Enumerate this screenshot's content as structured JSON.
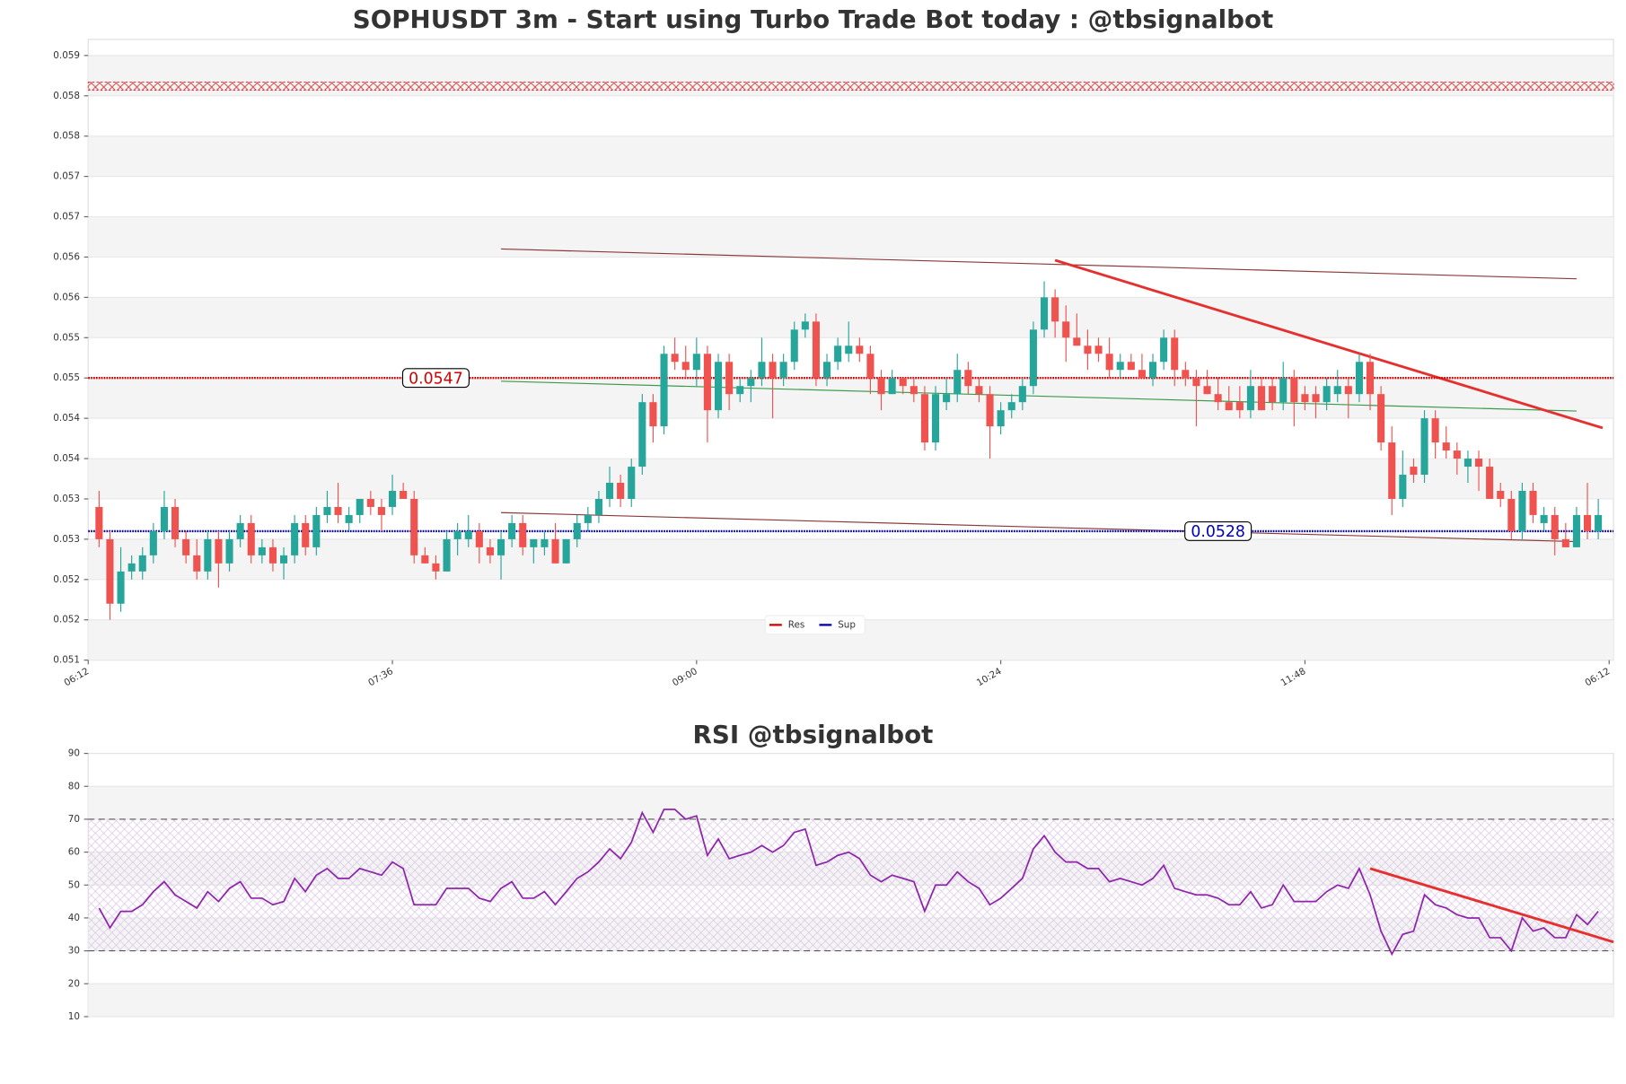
{
  "chart_data": [
    {
      "type": "candlestick",
      "title": "SOPHUSDT 3m - Start using Turbo Trade Bot today : @tbsignalbot",
      "up_color": "#26a69a",
      "down_color": "#ef5350",
      "open": [
        0.0531,
        0.0527,
        0.0519,
        0.0523,
        0.0523,
        0.0525,
        0.0528,
        0.0531,
        0.0527,
        0.0525,
        0.0523,
        0.0527,
        0.0524,
        0.0527,
        0.0529,
        0.0525,
        0.0526,
        0.0524,
        0.0525,
        0.0529,
        0.0526,
        0.053,
        0.0531,
        0.0529,
        0.053,
        0.0532,
        0.0531,
        0.0531,
        0.0533,
        0.0532,
        0.0525,
        0.0524,
        0.0523,
        0.0527,
        0.0527,
        0.0528,
        0.0526,
        0.0525,
        0.0527,
        0.0529,
        0.0526,
        0.0526,
        0.0527,
        0.0524,
        0.0527,
        0.0529,
        0.053,
        0.0532,
        0.0534,
        0.0532,
        0.0536,
        0.0544,
        0.0541,
        0.055,
        0.0549,
        0.0548,
        0.055,
        0.0543,
        0.0549,
        0.0545,
        0.0546,
        0.0547,
        0.0549,
        0.0547,
        0.0549,
        0.0553,
        0.0554,
        0.0547,
        0.0549,
        0.055,
        0.0551,
        0.055,
        0.0547,
        0.0545,
        0.0547,
        0.0546,
        0.0545,
        0.0539,
        0.0544,
        0.0545,
        0.0548,
        0.0546,
        0.0545,
        0.0541,
        0.0543,
        0.0544,
        0.0546,
        0.0553,
        0.0557,
        0.0554,
        0.0552,
        0.0551,
        0.0551,
        0.055,
        0.0548,
        0.0549,
        0.0548,
        0.0547,
        0.0549,
        0.0552,
        0.0548,
        0.0547,
        0.0546,
        0.0545,
        0.0544,
        0.0544,
        0.0543,
        0.0546,
        0.0546,
        0.0544,
        0.0547,
        0.0545,
        0.0545,
        0.0544,
        0.0545,
        0.0546,
        0.0545,
        0.0549,
        0.0545,
        0.0539,
        0.0532,
        0.0536,
        0.0535,
        0.0542,
        0.0539,
        0.0538,
        0.0536,
        0.0537,
        0.0536,
        0.0533,
        0.0532,
        0.0528,
        0.0533,
        0.0529,
        0.053,
        0.0527,
        0.0526,
        0.053,
        0.0528
      ],
      "high": [
        0.0533,
        0.0528,
        0.0526,
        0.0525,
        0.0526,
        0.0529,
        0.0533,
        0.0532,
        0.0528,
        0.0527,
        0.0528,
        0.0528,
        0.0528,
        0.053,
        0.053,
        0.0527,
        0.0527,
        0.0526,
        0.053,
        0.053,
        0.0531,
        0.0533,
        0.0534,
        0.0531,
        0.0532,
        0.0533,
        0.0532,
        0.0535,
        0.0534,
        0.0533,
        0.0526,
        0.0525,
        0.0528,
        0.0529,
        0.053,
        0.0529,
        0.0527,
        0.0528,
        0.053,
        0.053,
        0.0527,
        0.0528,
        0.0529,
        0.0527,
        0.053,
        0.0531,
        0.0533,
        0.0536,
        0.0535,
        0.0537,
        0.0545,
        0.0545,
        0.0551,
        0.0552,
        0.0551,
        0.0552,
        0.0551,
        0.055,
        0.055,
        0.0547,
        0.0548,
        0.0552,
        0.055,
        0.055,
        0.0554,
        0.0555,
        0.0555,
        0.055,
        0.0552,
        0.0554,
        0.0552,
        0.0551,
        0.0548,
        0.0548,
        0.0547,
        0.0547,
        0.0546,
        0.0546,
        0.0547,
        0.055,
        0.0549,
        0.0547,
        0.0546,
        0.0544,
        0.0545,
        0.0547,
        0.0554,
        0.0559,
        0.0558,
        0.0556,
        0.0555,
        0.0553,
        0.0552,
        0.0552,
        0.055,
        0.055,
        0.055,
        0.055,
        0.0553,
        0.0553,
        0.0549,
        0.0548,
        0.0548,
        0.0547,
        0.0546,
        0.0546,
        0.0548,
        0.0547,
        0.0547,
        0.0549,
        0.0548,
        0.0546,
        0.0546,
        0.0547,
        0.0548,
        0.0547,
        0.055,
        0.055,
        0.0546,
        0.0541,
        0.0538,
        0.0537,
        0.0543,
        0.0543,
        0.0541,
        0.0539,
        0.0538,
        0.0538,
        0.0537,
        0.0534,
        0.0533,
        0.0534,
        0.0534,
        0.0531,
        0.0531,
        0.0529,
        0.0531,
        0.0534,
        0.0532
      ],
      "low": [
        0.0526,
        0.0517,
        0.0518,
        0.0522,
        0.0522,
        0.0524,
        0.0527,
        0.0526,
        0.0524,
        0.0522,
        0.0522,
        0.0521,
        0.0523,
        0.0526,
        0.0524,
        0.0524,
        0.0523,
        0.0522,
        0.0524,
        0.0525,
        0.0525,
        0.0529,
        0.0529,
        0.0528,
        0.0529,
        0.053,
        0.0528,
        0.053,
        0.0532,
        0.0524,
        0.0524,
        0.0522,
        0.0523,
        0.0525,
        0.0526,
        0.0524,
        0.0524,
        0.0522,
        0.0526,
        0.0525,
        0.0524,
        0.0525,
        0.0524,
        0.0524,
        0.0526,
        0.0528,
        0.0529,
        0.0531,
        0.0531,
        0.0531,
        0.0535,
        0.0539,
        0.054,
        0.0548,
        0.0547,
        0.0546,
        0.0539,
        0.0542,
        0.0543,
        0.0544,
        0.0544,
        0.0546,
        0.0542,
        0.0546,
        0.0548,
        0.0552,
        0.0546,
        0.0546,
        0.0548,
        0.0549,
        0.0549,
        0.0545,
        0.0543,
        0.0545,
        0.0545,
        0.0544,
        0.0538,
        0.0538,
        0.0543,
        0.0544,
        0.0545,
        0.0544,
        0.0537,
        0.054,
        0.0542,
        0.0543,
        0.0545,
        0.0552,
        0.0552,
        0.0549,
        0.0551,
        0.0548,
        0.0549,
        0.0547,
        0.0547,
        0.0548,
        0.0547,
        0.0546,
        0.0548,
        0.0546,
        0.0546,
        0.0541,
        0.0545,
        0.0543,
        0.0543,
        0.0542,
        0.0542,
        0.0543,
        0.0543,
        0.0543,
        0.0541,
        0.0543,
        0.0542,
        0.0543,
        0.0544,
        0.0542,
        0.0544,
        0.0543,
        0.0538,
        0.053,
        0.0531,
        0.0534,
        0.0534,
        0.0537,
        0.0537,
        0.0535,
        0.0534,
        0.0533,
        0.0532,
        0.0531,
        0.0527,
        0.0527,
        0.0529,
        0.0528,
        0.0525,
        0.0526,
        0.0526,
        0.0527,
        0.0527
      ],
      "close": [
        0.0527,
        0.0519,
        0.0523,
        0.0524,
        0.0525,
        0.0528,
        0.0531,
        0.0527,
        0.0525,
        0.0523,
        0.0527,
        0.0524,
        0.0527,
        0.0529,
        0.0525,
        0.0526,
        0.0524,
        0.0525,
        0.0529,
        0.0526,
        0.053,
        0.0531,
        0.053,
        0.053,
        0.0532,
        0.0531,
        0.053,
        0.0533,
        0.0532,
        0.0525,
        0.0524,
        0.0523,
        0.0527,
        0.0528,
        0.0528,
        0.0526,
        0.0525,
        0.0527,
        0.0529,
        0.0526,
        0.0527,
        0.0527,
        0.0524,
        0.0527,
        0.0529,
        0.053,
        0.0532,
        0.0534,
        0.0532,
        0.0536,
        0.0544,
        0.0541,
        0.055,
        0.0549,
        0.0548,
        0.055,
        0.0543,
        0.0549,
        0.0545,
        0.0546,
        0.0547,
        0.0549,
        0.0547,
        0.0549,
        0.0553,
        0.0554,
        0.0547,
        0.0549,
        0.0551,
        0.0551,
        0.055,
        0.0547,
        0.0545,
        0.0547,
        0.0546,
        0.0545,
        0.0539,
        0.0545,
        0.0545,
        0.0548,
        0.0546,
        0.0545,
        0.0541,
        0.0543,
        0.0544,
        0.0546,
        0.0553,
        0.0557,
        0.0554,
        0.0552,
        0.0551,
        0.055,
        0.055,
        0.0548,
        0.0549,
        0.0548,
        0.0547,
        0.0549,
        0.0552,
        0.0548,
        0.0547,
        0.0546,
        0.0545,
        0.0544,
        0.0543,
        0.0543,
        0.0546,
        0.0543,
        0.0544,
        0.0547,
        0.0544,
        0.0544,
        0.0544,
        0.0546,
        0.0546,
        0.0545,
        0.0549,
        0.0545,
        0.0539,
        0.0532,
        0.0535,
        0.0535,
        0.0542,
        0.0539,
        0.0538,
        0.0537,
        0.0537,
        0.0536,
        0.0532,
        0.0532,
        0.0528,
        0.0533,
        0.053,
        0.053,
        0.0527,
        0.0526,
        0.053,
        0.0528,
        0.053
      ],
      "xlim": [
        -1,
        139.4
      ],
      "xticks": [
        {
          "value": -1,
          "label": "06:12"
        },
        {
          "value": 27,
          "label": "07:36"
        },
        {
          "value": 55,
          "label": "09:00"
        },
        {
          "value": 83,
          "label": "10:24"
        },
        {
          "value": 111,
          "label": "11:48"
        },
        {
          "value": 139,
          "label": "06:12"
        }
      ],
      "ylim": [
        0.0512,
        0.0589
      ],
      "yticks": [
        {
          "value": 0.0512,
          "label": "0.051"
        },
        {
          "value": 0.0517,
          "label": "0.052"
        },
        {
          "value": 0.0522,
          "label": "0.052"
        },
        {
          "value": 0.0527,
          "label": "0.053"
        },
        {
          "value": 0.0532,
          "label": "0.053"
        },
        {
          "value": 0.0537,
          "label": "0.054"
        },
        {
          "value": 0.0542,
          "label": "0.054"
        },
        {
          "value": 0.0547,
          "label": "0.055"
        },
        {
          "value": 0.0552,
          "label": "0.055"
        },
        {
          "value": 0.0557,
          "label": "0.056"
        },
        {
          "value": 0.0562,
          "label": "0.056"
        },
        {
          "value": 0.0567,
          "label": "0.057"
        },
        {
          "value": 0.0572,
          "label": "0.057"
        },
        {
          "value": 0.0577,
          "label": "0.058"
        },
        {
          "value": 0.0582,
          "label": "0.058"
        },
        {
          "value": 0.0587,
          "label": "0.059"
        }
      ],
      "grid": true,
      "zone": [
        0.05827,
        0.05837
      ],
      "levels": [
        {
          "name": "Res",
          "value": 0.0547,
          "value_label": "0.0547",
          "color": "#d40000"
        },
        {
          "name": "Sup",
          "value": 0.0528,
          "value_label": "0.0528",
          "color": "#0000b4"
        }
      ],
      "legend": "lower center",
      "trend_lines": [
        {
          "color": "#8b3a3a",
          "points": [
            [
              37,
              0.0563
            ],
            [
              136,
              0.05593
            ]
          ]
        },
        {
          "color": "#3a9a4a",
          "points": [
            [
              37,
              0.05466
            ],
            [
              136,
              0.05429
            ]
          ]
        },
        {
          "color": "#8b3a3a",
          "points": [
            [
              37,
              0.05303
            ],
            [
              136,
              0.05267
            ]
          ]
        },
        {
          "color": "#e53030",
          "points": [
            [
              88,
              0.05616
            ],
            [
              138.4,
              0.05408
            ]
          ]
        }
      ]
    },
    {
      "type": "line",
      "title": "RSI @tbsignalbot",
      "color": "#8e24aa",
      "values": [
        43,
        37,
        42,
        42,
        44,
        48,
        51,
        47,
        45,
        43,
        48,
        45,
        49,
        51,
        46,
        46,
        44,
        45,
        52,
        48,
        53,
        55,
        52,
        52,
        55,
        54,
        53,
        57,
        55,
        44,
        44,
        44,
        49,
        49,
        49,
        46,
        45,
        49,
        51,
        46,
        46,
        48,
        44,
        48,
        52,
        54,
        57,
        61,
        58,
        63,
        72,
        66,
        73,
        73,
        70,
        71,
        59,
        64,
        58,
        59,
        60,
        62,
        60,
        62,
        66,
        67,
        56,
        57,
        59,
        60,
        58,
        53,
        51,
        53,
        52,
        51,
        42,
        50,
        50,
        54,
        51,
        49,
        44,
        46,
        49,
        52,
        61,
        65,
        60,
        57,
        57,
        55,
        55,
        51,
        52,
        51,
        50,
        52,
        56,
        49,
        48,
        47,
        47,
        46,
        44,
        44,
        48,
        43,
        44,
        50,
        45,
        45,
        45,
        48,
        50,
        49,
        55,
        47,
        36,
        29,
        35,
        36,
        47,
        44,
        43,
        41,
        40,
        40,
        34,
        34,
        30,
        40,
        36,
        37,
        34,
        34,
        41,
        38,
        42
      ],
      "xlim": [
        -1,
        139.4
      ],
      "ylim": [
        10,
        90
      ],
      "yticks": [
        10,
        20,
        30,
        40,
        50,
        60,
        70,
        80,
        90
      ],
      "thresholds": [
        70,
        30
      ],
      "grid": true,
      "trend_lines": [
        {
          "color": "#e53030",
          "points": [
            [
              117,
              55
            ],
            [
              139.4,
              32.7
            ]
          ]
        }
      ]
    }
  ]
}
